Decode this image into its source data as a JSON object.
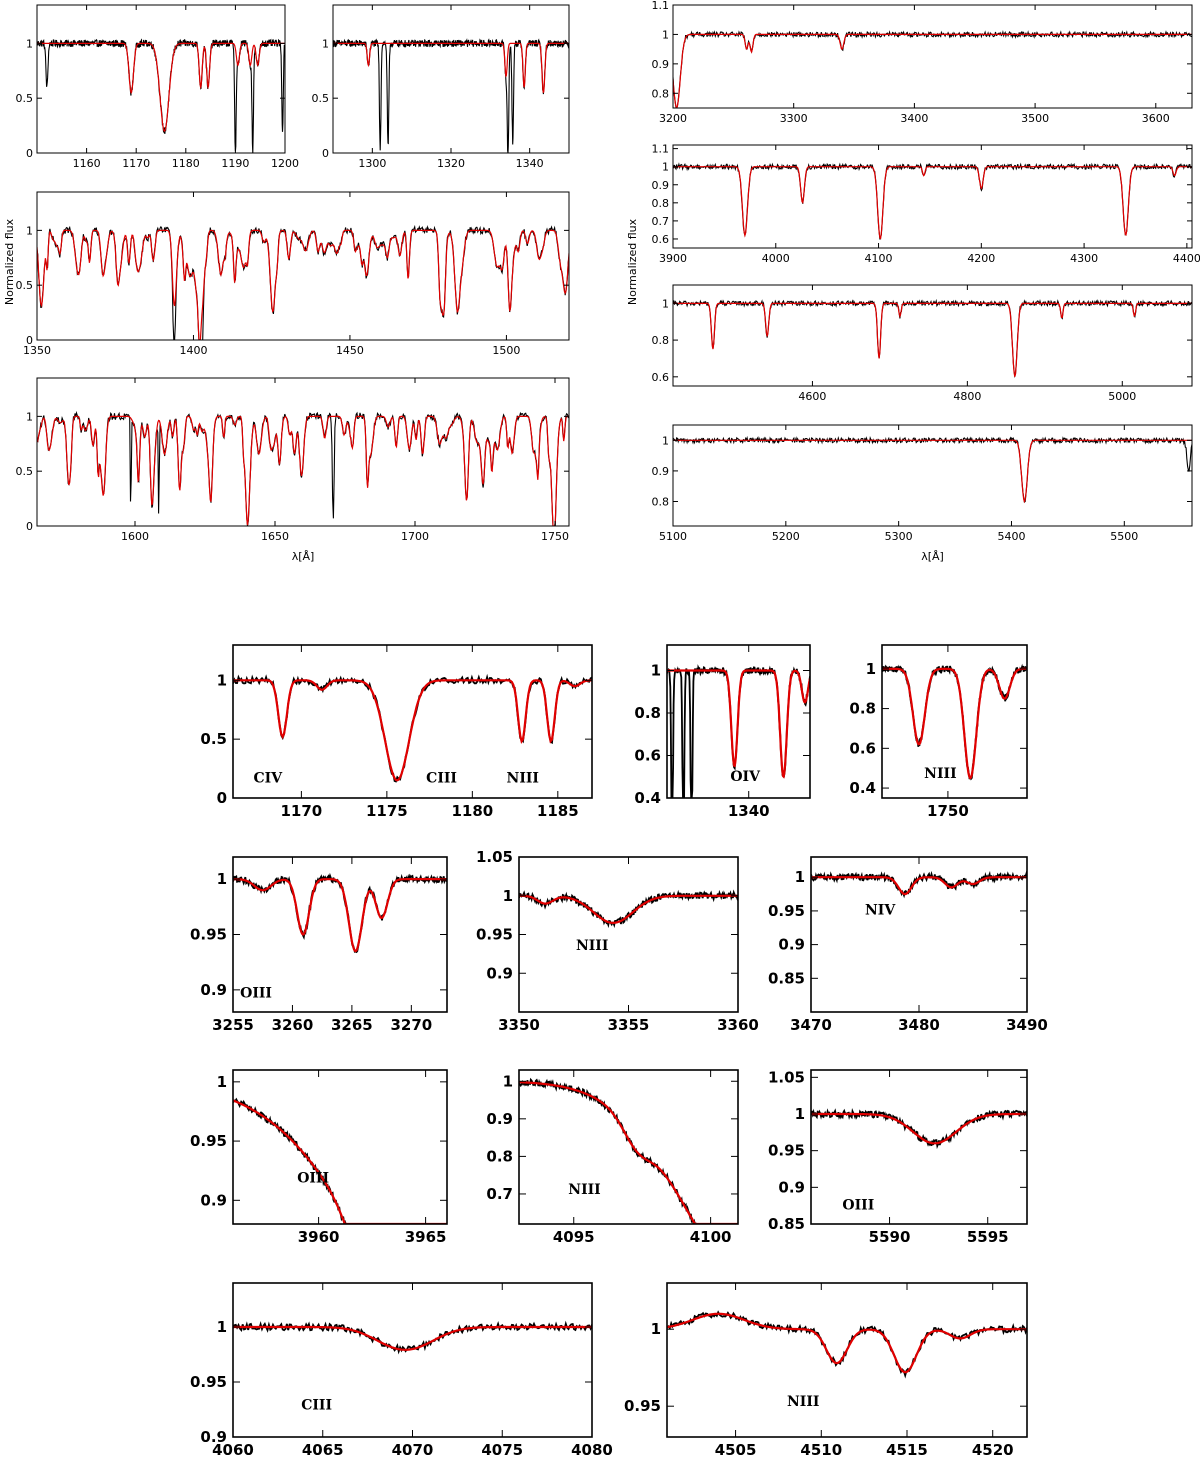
{
  "figure": {
    "top_xlabel": "λ[Å]",
    "top_ylabel": "Normalized flux",
    "colors": {
      "observed": "#000000",
      "model": "#e00000"
    }
  },
  "chart_data": [
    {
      "id": "uv1",
      "type": "line",
      "xlim": [
        1150,
        1200
      ],
      "ylim": [
        0,
        1.35
      ],
      "xticks": [
        1160,
        1170,
        1180,
        1190,
        1200
      ],
      "yticks": [
        0,
        0.5,
        1
      ],
      "series": [],
      "lines_model": [
        [
          1169,
          0.45,
          0.45
        ],
        [
          1175.7,
          0.8,
          0.9
        ],
        [
          1183,
          0.4,
          0.3
        ],
        [
          1184.5,
          0.4,
          0.3
        ],
        [
          1190.5,
          0.2,
          0.3
        ],
        [
          1193,
          0.2,
          0.3
        ],
        [
          1194.5,
          0.2,
          0.3
        ]
      ],
      "lines_obs_extra": [
        [
          1152,
          0.4,
          0.2
        ],
        [
          1190,
          0.95,
          0.15
        ],
        [
          1193.5,
          0.95,
          0.15
        ],
        [
          1199.5,
          0.8,
          0.15
        ]
      ]
    },
    {
      "id": "uv2",
      "type": "line",
      "xlim": [
        1290,
        1350
      ],
      "ylim": [
        0,
        1.35
      ],
      "xticks": [
        1300,
        1320,
        1340
      ],
      "yticks": [
        0,
        0.5,
        1
      ],
      "series": [],
      "lines_model": [
        [
          1299,
          0.2,
          0.3
        ],
        [
          1334,
          0.3,
          0.3
        ],
        [
          1338.6,
          0.4,
          0.3
        ],
        [
          1343.5,
          0.45,
          0.35
        ]
      ],
      "lines_obs_extra": [
        [
          1302,
          0.95,
          0.2
        ],
        [
          1304,
          0.95,
          0.2
        ],
        [
          1334.5,
          0.95,
          0.2
        ],
        [
          1335.7,
          0.9,
          0.2
        ]
      ]
    },
    {
      "id": "uv3",
      "type": "line",
      "xlim": [
        1350,
        1520
      ],
      "ylim": [
        0,
        1.35
      ],
      "xticks": [
        1350,
        1400,
        1450,
        1500
      ],
      "yticks": [
        0,
        0.5,
        1
      ],
      "ylabel": "Normalized flux",
      "series": [],
      "lines_model": [
        [
          1371,
          0.35,
          0.6
        ],
        [
          1393.8,
          0.55,
          0.6
        ],
        [
          1402.8,
          0.5,
          0.6
        ],
        [
          1501,
          0.45,
          0.5
        ]
      ],
      "lines_obs_extra": [
        [
          1393.8,
          0.5,
          0.3
        ],
        [
          1402.8,
          0.4,
          0.3
        ]
      ]
    },
    {
      "id": "uv4",
      "type": "line",
      "xlim": [
        1565,
        1755
      ],
      "ylim": [
        0,
        1.35
      ],
      "xticks": [
        1600,
        1650,
        1700,
        1750
      ],
      "yticks": [
        0,
        0.5,
        1
      ],
      "xlabel": "λ[Å]",
      "series": [],
      "lines_model": [
        [
          1640,
          0.55,
          0.6
        ],
        [
          1718.5,
          0.6,
          0.6
        ],
        [
          1750,
          0.4,
          0.6
        ]
      ],
      "lines_obs_extra": [
        [
          1598.5,
          1.0,
          0.15
        ],
        [
          1608.5,
          0.95,
          0.15
        ],
        [
          1670.8,
          0.95,
          0.3
        ]
      ]
    },
    {
      "id": "opt1",
      "type": "line",
      "xlim": [
        3200,
        3630
      ],
      "ylim": [
        0.75,
        1.1
      ],
      "xticks": [
        3200,
        3300,
        3400,
        3500,
        3600
      ],
      "yticks": [
        0.8,
        0.9,
        1,
        1.1
      ],
      "series": [],
      "lines_model": [
        [
          3203,
          0.25,
          3
        ],
        [
          3261,
          0.05,
          1.2
        ],
        [
          3265,
          0.06,
          1.2
        ],
        [
          3340,
          0.05,
          1.5
        ]
      ],
      "lines_obs_extra": []
    },
    {
      "id": "opt2",
      "type": "line",
      "xlim": [
        3900,
        4405
      ],
      "ylim": [
        0.55,
        1.12
      ],
      "xticks": [
        3900,
        4000,
        4100,
        4200,
        4300,
        4400
      ],
      "yticks": [
        0.6,
        0.7,
        0.8,
        0.9,
        1,
        1.1
      ],
      "ylabel": "Normalized flux",
      "series": [],
      "lines_model": [
        [
          3970,
          0.38,
          2.5
        ],
        [
          4026,
          0.2,
          1.8
        ],
        [
          4101.7,
          0.4,
          2.5
        ],
        [
          4200,
          0.12,
          1.8
        ],
        [
          4340.5,
          0.38,
          2.5
        ],
        [
          4388,
          0.05,
          1.5
        ],
        [
          4144,
          0.05,
          1.2
        ]
      ],
      "lines_obs_extra": []
    },
    {
      "id": "opt3",
      "type": "line",
      "xlim": [
        4420,
        5090
      ],
      "ylim": [
        0.55,
        1.1
      ],
      "xticks": [
        4600,
        4800,
        5000
      ],
      "yticks": [
        0.6,
        0.8,
        1
      ],
      "series": [],
      "lines_model": [
        [
          4471.5,
          0.25,
          2
        ],
        [
          4541.6,
          0.18,
          2
        ],
        [
          4686,
          0.3,
          2
        ],
        [
          4713,
          0.07,
          1.5
        ],
        [
          4861.3,
          0.4,
          3
        ],
        [
          4922,
          0.08,
          1.5
        ],
        [
          5015.7,
          0.07,
          1.5
        ]
      ],
      "lines_obs_extra": []
    },
    {
      "id": "opt4",
      "type": "line",
      "xlim": [
        5100,
        5560
      ],
      "ylim": [
        0.72,
        1.05
      ],
      "xticks": [
        5100,
        5200,
        5300,
        5400,
        5500
      ],
      "yticks": [
        0.8,
        0.9,
        1
      ],
      "xlabel": "λ[Å]",
      "series": [],
      "lines_model": [
        [
          5411.5,
          0.2,
          2.5
        ]
      ],
      "lines_obs_extra": [
        [
          5557,
          0.1,
          1.5
        ]
      ]
    },
    {
      "id": "z1",
      "type": "line",
      "xlim": [
        1166,
        1187
      ],
      "ylim": [
        0,
        1.3
      ],
      "xticks": [
        1170,
        1175,
        1180,
        1185
      ],
      "yticks": [
        0,
        0.5,
        1
      ],
      "label": "CIV",
      "labels": [
        {
          "text": "CIV",
          "x": 1167.2,
          "y": 0.13
        },
        {
          "text": "CIII",
          "x": 1177.3,
          "y": 0.13
        },
        {
          "text": "NIII",
          "x": 1182.0,
          "y": 0.13
        }
      ],
      "series": [],
      "lines_model": [
        [
          1168.9,
          0.48,
          0.25
        ],
        [
          1171.2,
          0.08,
          0.3
        ],
        [
          1175.6,
          0.85,
          0.7
        ],
        [
          1182.9,
          0.52,
          0.22
        ],
        [
          1184.6,
          0.52,
          0.22
        ],
        [
          1186,
          0.05,
          0.3
        ]
      ],
      "lines_obs_extra": []
    },
    {
      "id": "z2",
      "type": "line",
      "xlim": [
        1332,
        1346
      ],
      "ylim": [
        0.4,
        1.12
      ],
      "xticks": [
        1340
      ],
      "yticks": [
        0.4,
        0.6,
        0.8,
        1
      ],
      "labels": [
        {
          "text": "OIV",
          "x": 1338.2,
          "y": 0.48
        }
      ],
      "series": [],
      "lines_model": [
        [
          1338.6,
          0.45,
          0.3
        ],
        [
          1343.4,
          0.5,
          0.32
        ],
        [
          1345.5,
          0.15,
          0.3
        ]
      ],
      "lines_obs_extra": [
        [
          1332.5,
          0.9,
          0.08
        ],
        [
          1333.6,
          0.9,
          0.08
        ],
        [
          1334.4,
          0.9,
          0.08
        ]
      ]
    },
    {
      "id": "z3",
      "type": "line",
      "xlim": [
        1745,
        1756
      ],
      "ylim": [
        0.35,
        1.12
      ],
      "xticks": [
        1750
      ],
      "yticks": [
        0.4,
        0.6,
        0.8,
        1
      ],
      "labels": [
        {
          "text": "NIII",
          "x": 1748.2,
          "y": 0.45
        }
      ],
      "series": [],
      "lines_model": [
        [
          1747.8,
          0.38,
          0.45
        ],
        [
          1751.7,
          0.55,
          0.45
        ],
        [
          1754.3,
          0.15,
          0.4
        ]
      ],
      "lines_obs_extra": []
    },
    {
      "id": "z4",
      "type": "line",
      "xlim": [
        3255,
        3273
      ],
      "ylim": [
        0.88,
        1.02
      ],
      "xticks": [
        3255,
        3260,
        3265,
        3270
      ],
      "yticks": [
        0.9,
        0.95,
        1
      ],
      "labels": [
        {
          "text": "OIII",
          "x": 3255.6,
          "y": 0.893
        }
      ],
      "series": [],
      "lines_model": [
        [
          3257.5,
          0.01,
          0.7
        ],
        [
          3260.9,
          0.05,
          0.5
        ],
        [
          3265.3,
          0.065,
          0.55
        ],
        [
          3267.5,
          0.035,
          0.5
        ]
      ],
      "lines_obs_extra": []
    },
    {
      "id": "z5",
      "type": "line",
      "xlim": [
        3350,
        3360
      ],
      "ylim": [
        0.85,
        1.05
      ],
      "xticks": [
        3350,
        3355,
        3360
      ],
      "yticks": [
        0.9,
        0.95,
        1,
        1.05
      ],
      "labels": [
        {
          "text": "NIII",
          "x": 3352.6,
          "y": 0.93
        }
      ],
      "series": [],
      "lines_model": [
        [
          3351.2,
          0.01,
          0.35
        ],
        [
          3354.3,
          0.035,
          0.9
        ]
      ],
      "lines_obs_extra": []
    },
    {
      "id": "z6",
      "type": "line",
      "xlim": [
        3470,
        3490
      ],
      "ylim": [
        0.8,
        1.03
      ],
      "xticks": [
        3470,
        3480,
        3490
      ],
      "yticks": [
        0.85,
        0.9,
        0.95,
        1
      ],
      "labels": [
        {
          "text": "NIV",
          "x": 3475.0,
          "y": 0.945
        }
      ],
      "series": [],
      "lines_model": [
        [
          3478.7,
          0.025,
          0.6
        ],
        [
          3483,
          0.015,
          0.6
        ],
        [
          3485,
          0.01,
          0.6
        ]
      ],
      "lines_obs_extra": []
    },
    {
      "id": "z7",
      "type": "line",
      "xlim": [
        3956,
        3966
      ],
      "ylim": [
        0.88,
        1.01
      ],
      "xticks": [
        3960,
        3965
      ],
      "yticks": [
        0.9,
        0.95,
        1
      ],
      "labels": [
        {
          "text": "OIII",
          "x": 3959.0,
          "y": 0.915
        }
      ],
      "series": [],
      "lines_model": [
        [
          3961.6,
          0.01,
          0.5
        ]
      ],
      "wing": {
        "center": 3970,
        "depth": 0.4,
        "width": 2.5
      },
      "lines_obs_extra": []
    },
    {
      "id": "z8",
      "type": "line",
      "xlim": [
        4093,
        4101
      ],
      "ylim": [
        0.62,
        1.03
      ],
      "xticks": [
        4095,
        4100
      ],
      "yticks": [
        0.7,
        0.8,
        0.9,
        1
      ],
      "labels": [
        {
          "text": "NIII",
          "x": 4094.8,
          "y": 0.7
        }
      ],
      "series": [],
      "lines_model": [
        [
          4097.3,
          0.05,
          0.5
        ]
      ],
      "wing": {
        "center": 4101.7,
        "depth": 0.55,
        "width": 1.2
      },
      "lines_obs_extra": []
    },
    {
      "id": "z9",
      "type": "line",
      "xlim": [
        5586,
        5597
      ],
      "ylim": [
        0.85,
        1.06
      ],
      "xticks": [
        5590,
        5595
      ],
      "yticks": [
        0.85,
        0.9,
        0.95,
        1,
        1.05
      ],
      "labels": [
        {
          "text": "OIII",
          "x": 5587.6,
          "y": 0.87
        }
      ],
      "series": [],
      "lines_model": [
        [
          5592.3,
          0.04,
          1.1
        ]
      ],
      "lines_obs_extra": []
    },
    {
      "id": "z10",
      "type": "line",
      "xlim": [
        4060,
        4080
      ],
      "ylim": [
        0.9,
        1.04
      ],
      "xticks": [
        4060,
        4065,
        4070,
        4075,
        4080
      ],
      "yticks": [
        0.9,
        0.95,
        1
      ],
      "labels": [
        {
          "text": "CIII",
          "x": 4063.8,
          "y": 0.925
        }
      ],
      "series": [],
      "lines_model": [
        [
          4068.9,
          0.012,
          1.3
        ],
        [
          4070.3,
          0.012,
          1.3
        ]
      ],
      "lines_obs_extra": []
    },
    {
      "id": "z11",
      "type": "line",
      "xlim": [
        4501,
        4522
      ],
      "ylim": [
        0.93,
        1.03
      ],
      "xticks": [
        4505,
        4510,
        4515,
        4520
      ],
      "yticks": [
        0.95,
        1
      ],
      "labels": [
        {
          "text": "NIII",
          "x": 4508.0,
          "y": 0.95
        }
      ],
      "series": [],
      "lines_model": [
        [
          4510.9,
          0.022,
          0.6
        ],
        [
          4514.9,
          0.028,
          0.65
        ],
        [
          4518.1,
          0.006,
          0.6
        ]
      ],
      "bump": {
        "center": 4504,
        "height": 0.01,
        "width": 1.5
      },
      "lines_obs_extra": []
    }
  ]
}
